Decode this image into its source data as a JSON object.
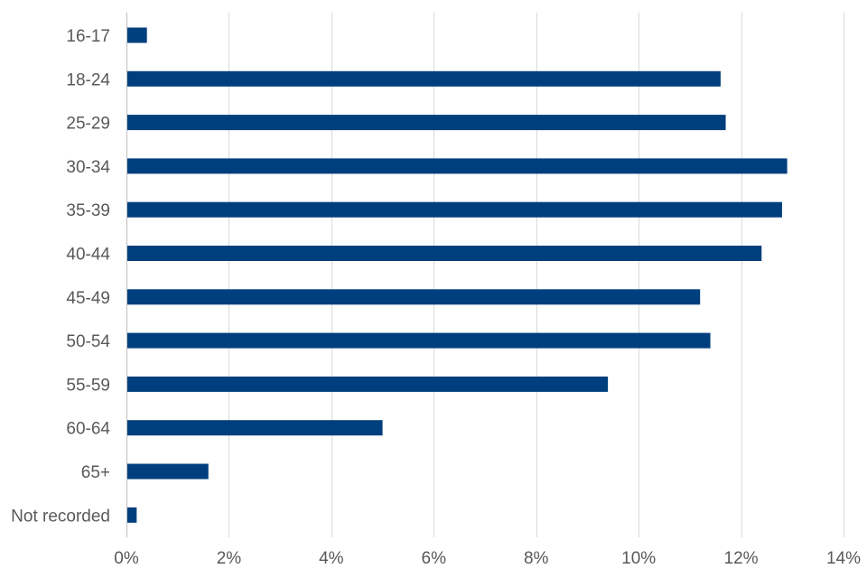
{
  "chart_data": {
    "type": "bar",
    "orientation": "horizontal",
    "categories": [
      "16-17",
      "18-24",
      "25-29",
      "30-34",
      "35-39",
      "40-44",
      "45-49",
      "50-54",
      "55-59",
      "60-64",
      "65+",
      "Not recorded"
    ],
    "values": [
      0.4,
      11.6,
      11.7,
      12.9,
      12.8,
      12.4,
      11.2,
      11.4,
      9.4,
      5.0,
      1.6,
      0.2
    ],
    "xlim": [
      0,
      14
    ],
    "xticks": [
      0,
      2,
      4,
      6,
      8,
      10,
      12,
      14
    ],
    "xtick_labels": [
      "0%",
      "2%",
      "4%",
      "6%",
      "8%",
      "10%",
      "12%",
      "14%"
    ],
    "title": "",
    "xlabel": "",
    "ylabel": "",
    "grid": "vertical",
    "bar_color": "#003f7d",
    "legend": "none"
  }
}
